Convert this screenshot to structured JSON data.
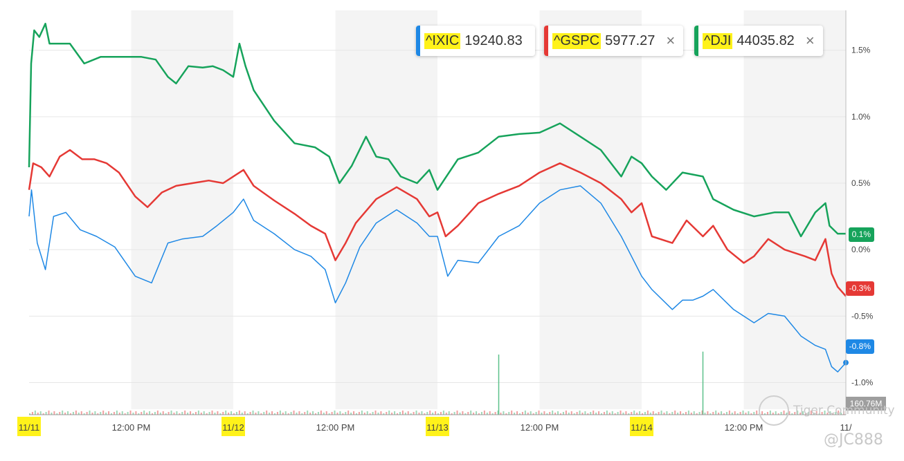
{
  "legend": [
    {
      "symbol": "^IXIC",
      "value": "19240.83",
      "color": "#1e88e5",
      "closable": false
    },
    {
      "symbol": "^GSPC",
      "value": "5977.27",
      "color": "#e53935",
      "closable": true
    },
    {
      "symbol": "^DJI",
      "value": "44035.82",
      "color": "#16a35b",
      "closable": true
    }
  ],
  "close_glyph": "×",
  "badges": {
    "dji": {
      "text": "0.1%",
      "color": "#16a35b"
    },
    "gspc": {
      "text": "-0.3%",
      "color": "#e53935"
    },
    "ixic": {
      "text": "-0.8%",
      "color": "#1e88e5"
    }
  },
  "volume_label": "160.76M",
  "watermark": {
    "brand": "Tiger Community",
    "handle": "@JC888"
  },
  "chart_data": {
    "type": "line",
    "ylim": [
      -1.2,
      1.8
    ],
    "y_ticks": [
      {
        "value": 1.5,
        "label": "1.5%"
      },
      {
        "value": 1.0,
        "label": "1.0%"
      },
      {
        "value": 0.5,
        "label": "0.5%"
      },
      {
        "value": 0.0,
        "label": "0.0%"
      },
      {
        "value": -0.5,
        "label": "-0.5%"
      },
      {
        "value": -1.0,
        "label": "-1.0%"
      }
    ],
    "x_ticks": [
      {
        "t": 0.0,
        "label": "11/11",
        "highlight": true
      },
      {
        "t": 0.5,
        "label": "12:00 PM",
        "highlight": false
      },
      {
        "t": 1.0,
        "label": "11/12",
        "highlight": true
      },
      {
        "t": 1.5,
        "label": "12:00 PM",
        "highlight": false
      },
      {
        "t": 2.0,
        "label": "11/13",
        "highlight": true
      },
      {
        "t": 2.5,
        "label": "12:00 PM",
        "highlight": false
      },
      {
        "t": 3.0,
        "label": "11/14",
        "highlight": true
      },
      {
        "t": 3.5,
        "label": "12:00 PM",
        "highlight": false
      },
      {
        "t": 4.0,
        "label": "11/",
        "highlight": false
      }
    ],
    "x_range": [
      0,
      4
    ],
    "shaded_bands": [
      [
        0.5,
        1.0
      ],
      [
        1.5,
        2.0
      ],
      [
        2.5,
        3.0
      ],
      [
        3.5,
        4.0
      ]
    ],
    "series": [
      {
        "name": "^DJI",
        "color": "#16a35b",
        "points": [
          [
            0.0,
            0.62
          ],
          [
            0.01,
            1.4
          ],
          [
            0.025,
            1.65
          ],
          [
            0.05,
            1.6
          ],
          [
            0.08,
            1.7
          ],
          [
            0.1,
            1.55
          ],
          [
            0.15,
            1.55
          ],
          [
            0.2,
            1.55
          ],
          [
            0.27,
            1.4
          ],
          [
            0.35,
            1.45
          ],
          [
            0.45,
            1.45
          ],
          [
            0.55,
            1.45
          ],
          [
            0.62,
            1.43
          ],
          [
            0.68,
            1.3
          ],
          [
            0.72,
            1.25
          ],
          [
            0.78,
            1.38
          ],
          [
            0.85,
            1.37
          ],
          [
            0.9,
            1.38
          ],
          [
            0.95,
            1.35
          ],
          [
            1.0,
            1.3
          ],
          [
            1.03,
            1.55
          ],
          [
            1.06,
            1.38
          ],
          [
            1.1,
            1.2
          ],
          [
            1.2,
            0.97
          ],
          [
            1.3,
            0.8
          ],
          [
            1.4,
            0.77
          ],
          [
            1.47,
            0.7
          ],
          [
            1.52,
            0.5
          ],
          [
            1.58,
            0.63
          ],
          [
            1.65,
            0.85
          ],
          [
            1.7,
            0.7
          ],
          [
            1.76,
            0.68
          ],
          [
            1.82,
            0.55
          ],
          [
            1.9,
            0.5
          ],
          [
            1.96,
            0.6
          ],
          [
            2.0,
            0.45
          ],
          [
            2.1,
            0.68
          ],
          [
            2.2,
            0.73
          ],
          [
            2.3,
            0.85
          ],
          [
            2.4,
            0.87
          ],
          [
            2.5,
            0.88
          ],
          [
            2.6,
            0.95
          ],
          [
            2.7,
            0.85
          ],
          [
            2.8,
            0.75
          ],
          [
            2.9,
            0.55
          ],
          [
            2.95,
            0.7
          ],
          [
            3.0,
            0.65
          ],
          [
            3.05,
            0.55
          ],
          [
            3.12,
            0.45
          ],
          [
            3.2,
            0.58
          ],
          [
            3.3,
            0.55
          ],
          [
            3.35,
            0.38
          ],
          [
            3.45,
            0.3
          ],
          [
            3.55,
            0.25
          ],
          [
            3.65,
            0.28
          ],
          [
            3.72,
            0.28
          ],
          [
            3.78,
            0.1
          ],
          [
            3.85,
            0.28
          ],
          [
            3.9,
            0.35
          ],
          [
            3.92,
            0.18
          ],
          [
            3.96,
            0.12
          ],
          [
            4.0,
            0.12
          ]
        ]
      },
      {
        "name": "^GSPC",
        "color": "#e53935",
        "points": [
          [
            0.0,
            0.45
          ],
          [
            0.02,
            0.65
          ],
          [
            0.06,
            0.62
          ],
          [
            0.1,
            0.55
          ],
          [
            0.15,
            0.7
          ],
          [
            0.2,
            0.75
          ],
          [
            0.26,
            0.68
          ],
          [
            0.32,
            0.68
          ],
          [
            0.38,
            0.65
          ],
          [
            0.44,
            0.58
          ],
          [
            0.52,
            0.4
          ],
          [
            0.58,
            0.32
          ],
          [
            0.65,
            0.43
          ],
          [
            0.72,
            0.48
          ],
          [
            0.8,
            0.5
          ],
          [
            0.88,
            0.52
          ],
          [
            0.95,
            0.5
          ],
          [
            1.0,
            0.55
          ],
          [
            1.05,
            0.6
          ],
          [
            1.1,
            0.48
          ],
          [
            1.2,
            0.37
          ],
          [
            1.3,
            0.27
          ],
          [
            1.38,
            0.18
          ],
          [
            1.45,
            0.12
          ],
          [
            1.5,
            -0.08
          ],
          [
            1.55,
            0.05
          ],
          [
            1.6,
            0.2
          ],
          [
            1.7,
            0.38
          ],
          [
            1.8,
            0.47
          ],
          [
            1.9,
            0.38
          ],
          [
            1.96,
            0.25
          ],
          [
            2.0,
            0.28
          ],
          [
            2.04,
            0.1
          ],
          [
            2.1,
            0.18
          ],
          [
            2.2,
            0.35
          ],
          [
            2.3,
            0.42
          ],
          [
            2.4,
            0.48
          ],
          [
            2.5,
            0.58
          ],
          [
            2.6,
            0.65
          ],
          [
            2.7,
            0.58
          ],
          [
            2.8,
            0.5
          ],
          [
            2.9,
            0.38
          ],
          [
            2.95,
            0.28
          ],
          [
            3.0,
            0.35
          ],
          [
            3.05,
            0.1
          ],
          [
            3.15,
            0.05
          ],
          [
            3.22,
            0.22
          ],
          [
            3.3,
            0.1
          ],
          [
            3.35,
            0.18
          ],
          [
            3.42,
            0.0
          ],
          [
            3.5,
            -0.1
          ],
          [
            3.55,
            -0.05
          ],
          [
            3.62,
            0.08
          ],
          [
            3.7,
            0.0
          ],
          [
            3.8,
            -0.05
          ],
          [
            3.85,
            -0.08
          ],
          [
            3.9,
            0.08
          ],
          [
            3.93,
            -0.18
          ],
          [
            3.96,
            -0.28
          ],
          [
            4.0,
            -0.35
          ]
        ]
      },
      {
        "name": "^IXIC",
        "color": "#1e88e5",
        "points": [
          [
            0.0,
            0.25
          ],
          [
            0.012,
            0.45
          ],
          [
            0.04,
            0.05
          ],
          [
            0.08,
            -0.15
          ],
          [
            0.12,
            0.25
          ],
          [
            0.18,
            0.28
          ],
          [
            0.25,
            0.15
          ],
          [
            0.33,
            0.1
          ],
          [
            0.42,
            0.02
          ],
          [
            0.52,
            -0.2
          ],
          [
            0.6,
            -0.25
          ],
          [
            0.68,
            0.05
          ],
          [
            0.75,
            0.08
          ],
          [
            0.85,
            0.1
          ],
          [
            0.92,
            0.18
          ],
          [
            1.0,
            0.28
          ],
          [
            1.05,
            0.38
          ],
          [
            1.1,
            0.22
          ],
          [
            1.2,
            0.12
          ],
          [
            1.3,
            0.0
          ],
          [
            1.38,
            -0.05
          ],
          [
            1.45,
            -0.15
          ],
          [
            1.5,
            -0.4
          ],
          [
            1.55,
            -0.25
          ],
          [
            1.62,
            0.02
          ],
          [
            1.7,
            0.2
          ],
          [
            1.8,
            0.3
          ],
          [
            1.9,
            0.2
          ],
          [
            1.96,
            0.1
          ],
          [
            2.0,
            0.1
          ],
          [
            2.05,
            -0.2
          ],
          [
            2.1,
            -0.08
          ],
          [
            2.2,
            -0.1
          ],
          [
            2.3,
            0.1
          ],
          [
            2.4,
            0.18
          ],
          [
            2.5,
            0.35
          ],
          [
            2.6,
            0.45
          ],
          [
            2.7,
            0.48
          ],
          [
            2.8,
            0.35
          ],
          [
            2.9,
            0.1
          ],
          [
            2.95,
            -0.05
          ],
          [
            3.0,
            -0.2
          ],
          [
            3.05,
            -0.3
          ],
          [
            3.15,
            -0.45
          ],
          [
            3.2,
            -0.38
          ],
          [
            3.25,
            -0.38
          ],
          [
            3.3,
            -0.35
          ],
          [
            3.35,
            -0.3
          ],
          [
            3.45,
            -0.45
          ],
          [
            3.55,
            -0.55
          ],
          [
            3.62,
            -0.48
          ],
          [
            3.7,
            -0.5
          ],
          [
            3.78,
            -0.65
          ],
          [
            3.85,
            -0.72
          ],
          [
            3.9,
            -0.75
          ],
          [
            3.93,
            -0.88
          ],
          [
            3.96,
            -0.92
          ],
          [
            4.0,
            -0.85
          ]
        ]
      }
    ],
    "volume_spikes": [
      {
        "t": 2.3,
        "height": 0.62
      },
      {
        "t": 3.3,
        "height": 0.65
      }
    ]
  }
}
